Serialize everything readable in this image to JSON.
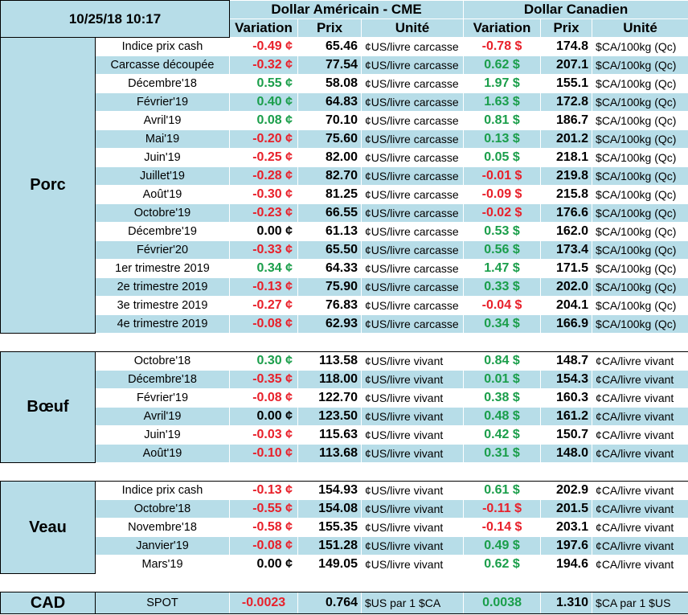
{
  "header": {
    "timestamp": "10/25/18 10:17",
    "usd_title": "Dollar Américain - CME",
    "cad_title": "Dollar Canadien",
    "col_variation": "Variation",
    "col_prix": "Prix",
    "col_unite": "Unité"
  },
  "sections": [
    {
      "name": "Porc",
      "rows": [
        {
          "label": "Indice prix cash",
          "usd_var": "-0.49 ¢",
          "usd_sign": "neg",
          "usd_price": "65.46",
          "usd_unit": "¢US/livre carcasse",
          "cad_var": "-0.78 $",
          "cad_sign": "neg",
          "cad_price": "174.8",
          "cad_unit": "$CA/100kg (Qc)"
        },
        {
          "label": "Carcasse découpée",
          "usd_var": "-0.32 ¢",
          "usd_sign": "neg",
          "usd_price": "77.54",
          "usd_unit": "¢US/livre carcasse",
          "cad_var": "0.62 $",
          "cad_sign": "pos",
          "cad_price": "207.1",
          "cad_unit": "$CA/100kg (Qc)"
        },
        {
          "label": "Décembre'18",
          "usd_var": "0.55 ¢",
          "usd_sign": "pos",
          "usd_price": "58.08",
          "usd_unit": "¢US/livre carcasse",
          "cad_var": "1.97 $",
          "cad_sign": "pos",
          "cad_price": "155.1",
          "cad_unit": "$CA/100kg (Qc)"
        },
        {
          "label": "Février'19",
          "usd_var": "0.40 ¢",
          "usd_sign": "pos",
          "usd_price": "64.83",
          "usd_unit": "¢US/livre carcasse",
          "cad_var": "1.63 $",
          "cad_sign": "pos",
          "cad_price": "172.8",
          "cad_unit": "$CA/100kg (Qc)"
        },
        {
          "label": "Avril'19",
          "usd_var": "0.08 ¢",
          "usd_sign": "pos",
          "usd_price": "70.10",
          "usd_unit": "¢US/livre carcasse",
          "cad_var": "0.81 $",
          "cad_sign": "pos",
          "cad_price": "186.7",
          "cad_unit": "$CA/100kg (Qc)"
        },
        {
          "label": "Mai'19",
          "usd_var": "-0.20 ¢",
          "usd_sign": "neg",
          "usd_price": "75.60",
          "usd_unit": "¢US/livre carcasse",
          "cad_var": "0.13 $",
          "cad_sign": "pos",
          "cad_price": "201.2",
          "cad_unit": "$CA/100kg (Qc)"
        },
        {
          "label": "Juin'19",
          "usd_var": "-0.25 ¢",
          "usd_sign": "neg",
          "usd_price": "82.00",
          "usd_unit": "¢US/livre carcasse",
          "cad_var": "0.05 $",
          "cad_sign": "pos",
          "cad_price": "218.1",
          "cad_unit": "$CA/100kg (Qc)"
        },
        {
          "label": "Juillet'19",
          "usd_var": "-0.28 ¢",
          "usd_sign": "neg",
          "usd_price": "82.70",
          "usd_unit": "¢US/livre carcasse",
          "cad_var": "-0.01 $",
          "cad_sign": "neg",
          "cad_price": "219.8",
          "cad_unit": "$CA/100kg (Qc)"
        },
        {
          "label": "Août'19",
          "usd_var": "-0.30 ¢",
          "usd_sign": "neg",
          "usd_price": "81.25",
          "usd_unit": "¢US/livre carcasse",
          "cad_var": "-0.09 $",
          "cad_sign": "neg",
          "cad_price": "215.8",
          "cad_unit": "$CA/100kg (Qc)"
        },
        {
          "label": "Octobre'19",
          "usd_var": "-0.23 ¢",
          "usd_sign": "neg",
          "usd_price": "66.55",
          "usd_unit": "¢US/livre carcasse",
          "cad_var": "-0.02 $",
          "cad_sign": "neg",
          "cad_price": "176.6",
          "cad_unit": "$CA/100kg (Qc)"
        },
        {
          "label": "Décembre'19",
          "usd_var": "0.00 ¢",
          "usd_sign": "zero",
          "usd_price": "61.13",
          "usd_unit": "¢US/livre carcasse",
          "cad_var": "0.53 $",
          "cad_sign": "pos",
          "cad_price": "162.0",
          "cad_unit": "$CA/100kg (Qc)"
        },
        {
          "label": "Février'20",
          "usd_var": "-0.33 ¢",
          "usd_sign": "neg",
          "usd_price": "65.50",
          "usd_unit": "¢US/livre carcasse",
          "cad_var": "0.56 $",
          "cad_sign": "pos",
          "cad_price": "173.4",
          "cad_unit": "$CA/100kg (Qc)"
        },
        {
          "label": "1er trimestre 2019",
          "usd_var": "0.34 ¢",
          "usd_sign": "pos",
          "usd_price": "64.33",
          "usd_unit": "¢US/livre carcasse",
          "cad_var": "1.47 $",
          "cad_sign": "pos",
          "cad_price": "171.5",
          "cad_unit": "$CA/100kg (Qc)"
        },
        {
          "label": "2e trimestre 2019",
          "usd_var": "-0.13 ¢",
          "usd_sign": "neg",
          "usd_price": "75.90",
          "usd_unit": "¢US/livre carcasse",
          "cad_var": "0.33 $",
          "cad_sign": "pos",
          "cad_price": "202.0",
          "cad_unit": "$CA/100kg (Qc)"
        },
        {
          "label": "3e trimestre 2019",
          "usd_var": "-0.27 ¢",
          "usd_sign": "neg",
          "usd_price": "76.83",
          "usd_unit": "¢US/livre carcasse",
          "cad_var": "-0.04 $",
          "cad_sign": "neg",
          "cad_price": "204.1",
          "cad_unit": "$CA/100kg (Qc)"
        },
        {
          "label": "4e trimestre 2019",
          "usd_var": "-0.08 ¢",
          "usd_sign": "neg",
          "usd_price": "62.93",
          "usd_unit": "¢US/livre carcasse",
          "cad_var": "0.34 $",
          "cad_sign": "pos",
          "cad_price": "166.9",
          "cad_unit": "$CA/100kg (Qc)"
        }
      ]
    },
    {
      "name": "Bœuf",
      "rows": [
        {
          "label": "Octobre'18",
          "usd_var": "0.30 ¢",
          "usd_sign": "pos",
          "usd_price": "113.58",
          "usd_unit": "¢US/livre vivant",
          "cad_var": "0.84 $",
          "cad_sign": "pos",
          "cad_price": "148.7",
          "cad_unit": "¢CA/livre vivant"
        },
        {
          "label": "Décembre'18",
          "usd_var": "-0.35 ¢",
          "usd_sign": "neg",
          "usd_price": "118.00",
          "usd_unit": "¢US/livre vivant",
          "cad_var": "0.01 $",
          "cad_sign": "pos",
          "cad_price": "154.3",
          "cad_unit": "¢CA/livre vivant"
        },
        {
          "label": "Février'19",
          "usd_var": "-0.08 ¢",
          "usd_sign": "neg",
          "usd_price": "122.70",
          "usd_unit": "¢US/livre vivant",
          "cad_var": "0.38 $",
          "cad_sign": "pos",
          "cad_price": "160.3",
          "cad_unit": "¢CA/livre vivant"
        },
        {
          "label": "Avril'19",
          "usd_var": "0.00 ¢",
          "usd_sign": "zero",
          "usd_price": "123.50",
          "usd_unit": "¢US/livre vivant",
          "cad_var": "0.48 $",
          "cad_sign": "pos",
          "cad_price": "161.2",
          "cad_unit": "¢CA/livre vivant"
        },
        {
          "label": "Juin'19",
          "usd_var": "-0.03 ¢",
          "usd_sign": "neg",
          "usd_price": "115.63",
          "usd_unit": "¢US/livre vivant",
          "cad_var": "0.42 $",
          "cad_sign": "pos",
          "cad_price": "150.7",
          "cad_unit": "¢CA/livre vivant"
        },
        {
          "label": "Août'19",
          "usd_var": "-0.10 ¢",
          "usd_sign": "neg",
          "usd_price": "113.68",
          "usd_unit": "¢US/livre vivant",
          "cad_var": "0.31 $",
          "cad_sign": "pos",
          "cad_price": "148.0",
          "cad_unit": "¢CA/livre vivant"
        }
      ]
    },
    {
      "name": "Veau",
      "rows": [
        {
          "label": "Indice prix cash",
          "usd_var": "-0.13 ¢",
          "usd_sign": "neg",
          "usd_price": "154.93",
          "usd_unit": "¢US/livre vivant",
          "cad_var": "0.61 $",
          "cad_sign": "pos",
          "cad_price": "202.9",
          "cad_unit": "¢CA/livre vivant"
        },
        {
          "label": "Octobre'18",
          "usd_var": "-0.55 ¢",
          "usd_sign": "neg",
          "usd_price": "154.08",
          "usd_unit": "¢US/livre vivant",
          "cad_var": "-0.11 $",
          "cad_sign": "neg",
          "cad_price": "201.5",
          "cad_unit": "¢CA/livre vivant"
        },
        {
          "label": "Novembre'18",
          "usd_var": "-0.58 ¢",
          "usd_sign": "neg",
          "usd_price": "155.35",
          "usd_unit": "¢US/livre vivant",
          "cad_var": "-0.14 $",
          "cad_sign": "neg",
          "cad_price": "203.1",
          "cad_unit": "¢CA/livre vivant"
        },
        {
          "label": "Janvier'19",
          "usd_var": "-0.08 ¢",
          "usd_sign": "neg",
          "usd_price": "151.28",
          "usd_unit": "¢US/livre vivant",
          "cad_var": "0.49 $",
          "cad_sign": "pos",
          "cad_price": "197.6",
          "cad_unit": "¢CA/livre vivant"
        },
        {
          "label": "Mars'19",
          "usd_var": "0.00 ¢",
          "usd_sign": "zero",
          "usd_price": "149.05",
          "usd_unit": "¢US/livre vivant",
          "cad_var": "0.62 $",
          "cad_sign": "pos",
          "cad_price": "194.6",
          "cad_unit": "¢CA/livre vivant"
        }
      ]
    }
  ],
  "cad": {
    "name": "CAD",
    "label": "SPOT",
    "usd_var": "-0.0023",
    "usd_sign": "neg",
    "usd_price": "0.764",
    "usd_unit": "$US par 1 $CA",
    "cad_var": "0.0038",
    "cad_sign": "pos",
    "cad_price": "1.310",
    "cad_unit": "$CA par 1 $US"
  }
}
